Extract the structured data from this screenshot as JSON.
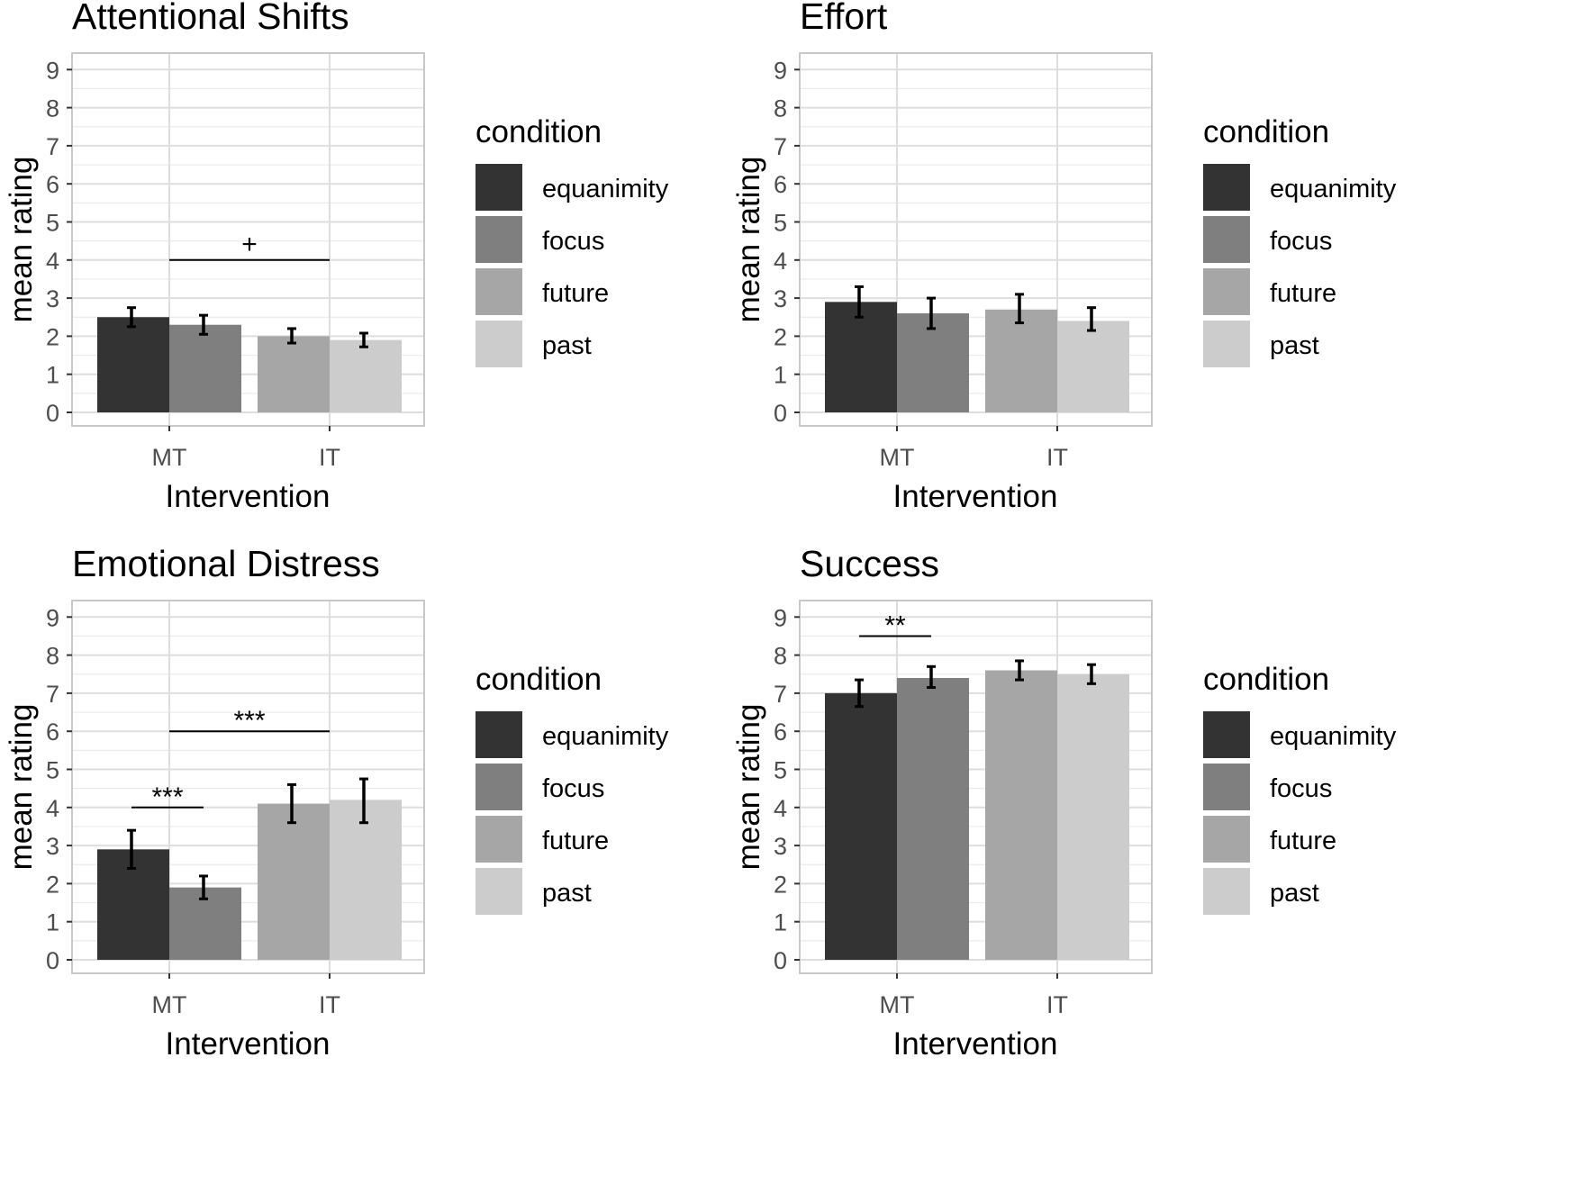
{
  "chart_data": [
    {
      "type": "bar",
      "title": "Attentional Shifts",
      "xlabel": "Intervention",
      "ylabel": "mean rating",
      "ylim": [
        0,
        9
      ],
      "yticks": [
        0,
        1,
        2,
        3,
        4,
        5,
        6,
        7,
        8,
        9
      ],
      "categories": [
        "MT",
        "IT"
      ],
      "grid": true,
      "legend": {
        "title": "condition",
        "position": "right"
      },
      "series": [
        {
          "name": "equanimity",
          "category": "MT",
          "value": 2.5,
          "err_low": 2.25,
          "err_high": 2.75,
          "color": "#333333"
        },
        {
          "name": "focus",
          "category": "MT",
          "value": 2.3,
          "err_low": 2.05,
          "err_high": 2.55,
          "color": "#7f7f7f"
        },
        {
          "name": "future",
          "category": "IT",
          "value": 2.0,
          "err_low": 1.82,
          "err_high": 2.2,
          "color": "#a6a6a6"
        },
        {
          "name": "past",
          "category": "IT",
          "value": 1.9,
          "err_low": 1.72,
          "err_high": 2.08,
          "color": "#cccccc"
        }
      ],
      "annotations": [
        {
          "label": "+",
          "from": "MT",
          "to": "IT",
          "y": 4.0
        }
      ]
    },
    {
      "type": "bar",
      "title": "Effort",
      "xlabel": "Intervention",
      "ylabel": "mean rating",
      "ylim": [
        0,
        9
      ],
      "yticks": [
        0,
        1,
        2,
        3,
        4,
        5,
        6,
        7,
        8,
        9
      ],
      "categories": [
        "MT",
        "IT"
      ],
      "grid": true,
      "legend": {
        "title": "condition",
        "position": "right"
      },
      "series": [
        {
          "name": "equanimity",
          "category": "MT",
          "value": 2.9,
          "err_low": 2.5,
          "err_high": 3.3,
          "color": "#333333"
        },
        {
          "name": "focus",
          "category": "MT",
          "value": 2.6,
          "err_low": 2.2,
          "err_high": 3.0,
          "color": "#7f7f7f"
        },
        {
          "name": "future",
          "category": "IT",
          "value": 2.7,
          "err_low": 2.35,
          "err_high": 3.1,
          "color": "#a6a6a6"
        },
        {
          "name": "past",
          "category": "IT",
          "value": 2.4,
          "err_low": 2.15,
          "err_high": 2.75,
          "color": "#cccccc"
        }
      ],
      "annotations": []
    },
    {
      "type": "bar",
      "title": "Emotional Distress",
      "xlabel": "Intervention",
      "ylabel": "mean rating",
      "ylim": [
        0,
        9
      ],
      "yticks": [
        0,
        1,
        2,
        3,
        4,
        5,
        6,
        7,
        8,
        9
      ],
      "categories": [
        "MT",
        "IT"
      ],
      "grid": true,
      "legend": {
        "title": "condition",
        "position": "right"
      },
      "series": [
        {
          "name": "equanimity",
          "category": "MT",
          "value": 2.9,
          "err_low": 2.4,
          "err_high": 3.4,
          "color": "#333333"
        },
        {
          "name": "focus",
          "category": "MT",
          "value": 1.9,
          "err_low": 1.6,
          "err_high": 2.2,
          "color": "#7f7f7f"
        },
        {
          "name": "future",
          "category": "IT",
          "value": 4.1,
          "err_low": 3.6,
          "err_high": 4.6,
          "color": "#a6a6a6"
        },
        {
          "name": "past",
          "category": "IT",
          "value": 4.2,
          "err_low": 3.6,
          "err_high": 4.75,
          "color": "#cccccc"
        }
      ],
      "annotations": [
        {
          "label": "***",
          "from": "MT",
          "to": "IT",
          "y": 6.0
        },
        {
          "label": "***",
          "from": "equanimity",
          "to": "focus",
          "y": 4.0
        }
      ]
    },
    {
      "type": "bar",
      "title": "Success",
      "xlabel": "Intervention",
      "ylabel": "mean rating",
      "ylim": [
        0,
        9
      ],
      "yticks": [
        0,
        1,
        2,
        3,
        4,
        5,
        6,
        7,
        8,
        9
      ],
      "categories": [
        "MT",
        "IT"
      ],
      "grid": true,
      "legend": {
        "title": "condition",
        "position": "right"
      },
      "series": [
        {
          "name": "equanimity",
          "category": "MT",
          "value": 7.0,
          "err_low": 6.65,
          "err_high": 7.35,
          "color": "#333333"
        },
        {
          "name": "focus",
          "category": "MT",
          "value": 7.4,
          "err_low": 7.15,
          "err_high": 7.7,
          "color": "#7f7f7f"
        },
        {
          "name": "future",
          "category": "IT",
          "value": 7.6,
          "err_low": 7.35,
          "err_high": 7.85,
          "color": "#a6a6a6"
        },
        {
          "name": "past",
          "category": "IT",
          "value": 7.5,
          "err_low": 7.25,
          "err_high": 7.75,
          "color": "#cccccc"
        }
      ],
      "annotations": [
        {
          "label": "**",
          "from": "equanimity",
          "to": "focus",
          "y": 8.5
        }
      ]
    }
  ]
}
